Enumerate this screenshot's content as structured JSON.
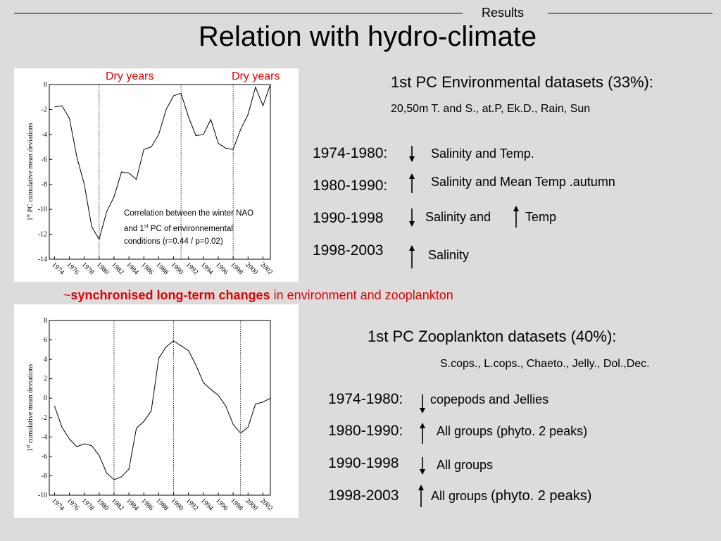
{
  "header": {
    "section": "Results",
    "title": "Relation with hydro-climate"
  },
  "chart_data": [
    {
      "type": "line",
      "ylabel_parts": [
        "1",
        "st",
        " PC cumulative mean deviations"
      ],
      "x": [
        1974,
        1975,
        1976,
        1977,
        1978,
        1979,
        1980,
        1981,
        1982,
        1983,
        1984,
        1985,
        1986,
        1987,
        1988,
        1989,
        1990,
        1991,
        1992,
        1993,
        1994,
        1995,
        1996,
        1997,
        1998,
        1999,
        2000,
        2001,
        2002,
        2003
      ],
      "values": [
        -1.8,
        -1.7,
        -2.7,
        -5.8,
        -8,
        -11.4,
        -12.4,
        -10.2,
        -9,
        -7,
        -7.1,
        -7.6,
        -5.2,
        -5,
        -4,
        -2,
        -0.9,
        -0.7,
        -2.6,
        -4.1,
        -4,
        -2.8,
        -4.7,
        -5.1,
        -5.2,
        -3.6,
        -2.4,
        -0.2,
        -1.7,
        0
      ],
      "color": "#000000",
      "xlim": [
        1973.3,
        2003
      ],
      "xticks": [
        1974,
        1976,
        1978,
        1980,
        1982,
        1984,
        1986,
        1988,
        1990,
        1992,
        1994,
        1996,
        1998,
        2000,
        2002
      ],
      "ylim": [
        -14,
        0
      ],
      "yticks": [
        -14,
        -12,
        -10,
        -8,
        -6,
        -4,
        -2,
        0
      ],
      "markers": [
        1980,
        1991,
        1998
      ],
      "grid": false,
      "annotations": [
        "Dry years",
        "Dry years"
      ],
      "note": [
        "Correlation between the winter NAO",
        "and 1",
        "st",
        " PC of environnemental",
        "conditions (r=0.44 / p=0.02)"
      ]
    },
    {
      "type": "line",
      "ylabel_parts": [
        "1",
        "st",
        " cumulative mean deviations"
      ],
      "x": [
        1974,
        1975,
        1976,
        1977,
        1978,
        1979,
        1980,
        1981,
        1982,
        1983,
        1984,
        1985,
        1986,
        1987,
        1988,
        1989,
        1990,
        1991,
        1992,
        1993,
        1994,
        1995,
        1996,
        1997,
        1998,
        1999,
        2000,
        2001,
        2002,
        2003
      ],
      "values": [
        -0.8,
        -3,
        -4.2,
        -5,
        -4.7,
        -4.9,
        -5.9,
        -7.7,
        -8.4,
        -8.1,
        -7.3,
        -3.1,
        -2.4,
        -1.3,
        4.1,
        5.3,
        5.9,
        5.4,
        4.9,
        3.4,
        1.6,
        0.9,
        0.3,
        -0.8,
        -2.7,
        -3.6,
        -3,
        -0.6,
        -0.4,
        0
      ],
      "color": "#000000",
      "xlim": [
        1973.3,
        2003
      ],
      "xticks": [
        1974,
        1976,
        1978,
        1980,
        1982,
        1984,
        1986,
        1988,
        1990,
        1992,
        1994,
        1996,
        1998,
        2000,
        2002
      ],
      "ylim": [
        -10,
        8
      ],
      "yticks": [
        -10,
        -8,
        -6,
        -4,
        -2,
        0,
        2,
        4,
        6,
        8
      ],
      "markers": [
        1982,
        1990,
        1999
      ],
      "grid": false
    }
  ],
  "environment": {
    "heading": "1st PC Environmental datasets (33%):",
    "variables": "20,50m T. and S., at.P, Ek.D., Rain, Sun",
    "rows": [
      [
        "1974-1980:",
        "Salinity and Temp."
      ],
      [
        "1980-1990:",
        "Salinity and Mean Temp .autumn"
      ],
      [
        "1990-1998",
        "Salinity and",
        "Temp"
      ],
      [
        "1998-2003",
        "Salinity"
      ]
    ]
  },
  "conclusion": [
    "~",
    "synchronised long-term changes",
    " in environment and zooplankton"
  ],
  "zooplankton": {
    "heading": "1st PC Zooplankton datasets (40%):",
    "variables": "S.cops., L.cops., Chaeto., Jelly., Dol.,Dec.",
    "rows": [
      [
        "1974-1980:",
        "copepods and Jellies"
      ],
      [
        "1980-1990:",
        "All groups (phyto. 2 peaks)"
      ],
      [
        "1990-1998",
        "All groups"
      ],
      [
        "1998-2003",
        "All groups ",
        "(phyto. 2 peaks)"
      ]
    ]
  }
}
